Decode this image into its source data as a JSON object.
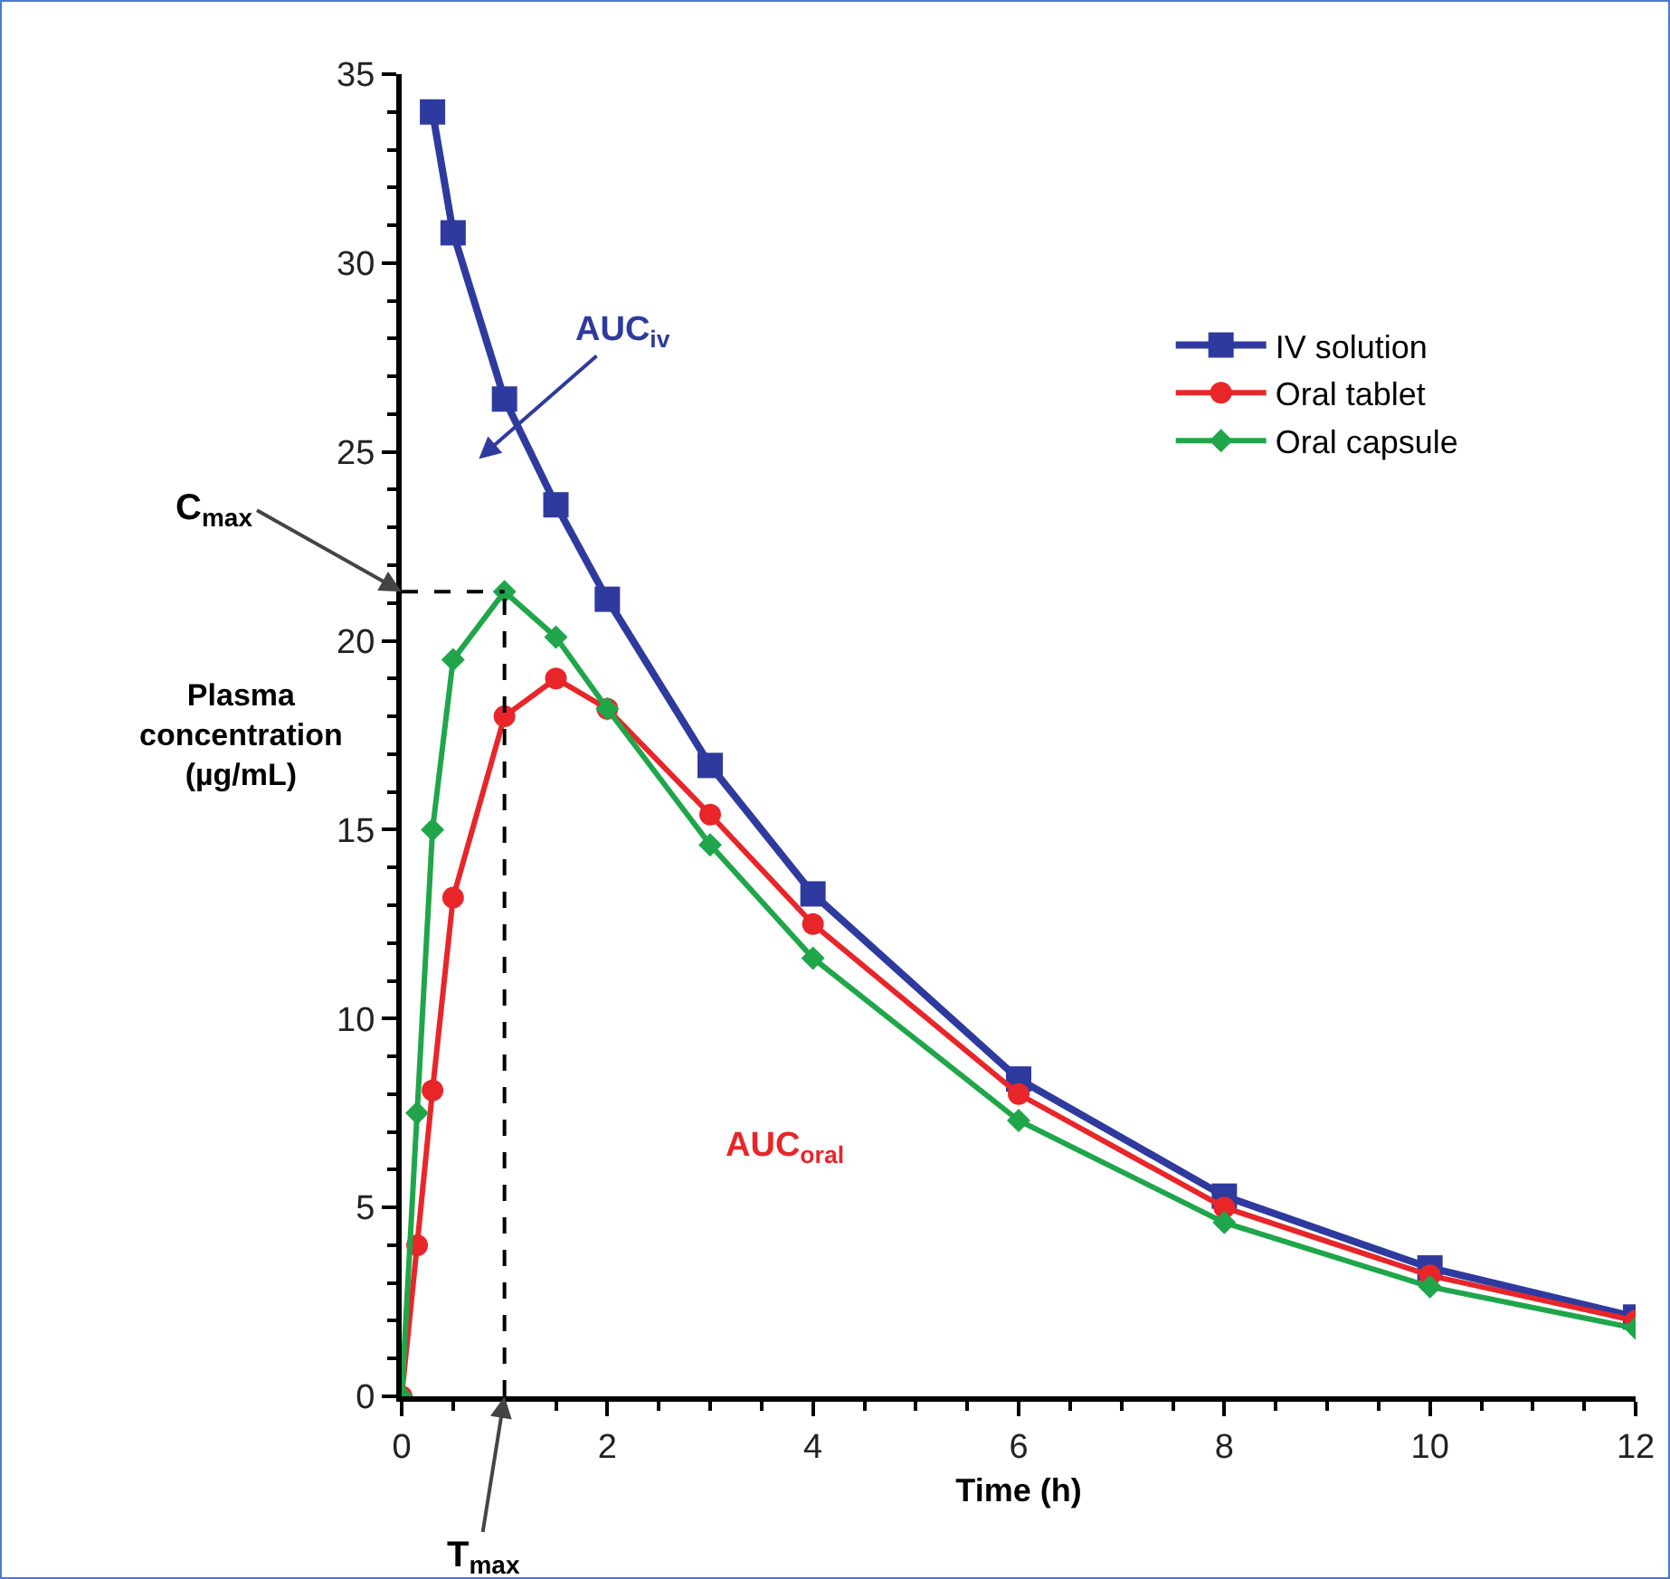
{
  "chart_data": {
    "type": "line",
    "xlabel": "Time (h)",
    "ylabel": "Plasma concentration (µg/mL)",
    "xlim": [
      0,
      12
    ],
    "xticks": [
      0,
      2,
      4,
      6,
      8,
      10,
      12
    ],
    "ylim": [
      0,
      35
    ],
    "yticks": [
      0,
      5,
      10,
      15,
      20,
      25,
      30,
      35
    ],
    "grid": false,
    "legend": "top right",
    "line_style": "solid",
    "series": [
      {
        "name": "IV solution",
        "color": "#2e3a9e",
        "marker": "square",
        "x": [
          0.3,
          0.5,
          1,
          1.5,
          2,
          3,
          4,
          6,
          8,
          10,
          12
        ],
        "values": [
          34,
          30.8,
          26.4,
          23.6,
          21.1,
          16.7,
          13.3,
          8.4,
          5.3,
          3.4,
          2.1
        ]
      },
      {
        "name": "Oral tablet",
        "color": "#e8262a",
        "marker": "circle",
        "x": [
          0,
          0.15,
          0.3,
          0.5,
          1,
          1.5,
          2,
          3,
          4,
          6,
          8,
          10,
          12
        ],
        "values": [
          0,
          4,
          8.1,
          13.2,
          18,
          19,
          18.2,
          15.4,
          12.5,
          8,
          5,
          3.2,
          2.0
        ]
      },
      {
        "name": "Oral capsule",
        "color": "#1fa64a",
        "marker": "diamond",
        "x": [
          0,
          0.15,
          0.3,
          0.5,
          1,
          1.5,
          2,
          3,
          4,
          6,
          8,
          10,
          12
        ],
        "values": [
          0,
          7.5,
          15,
          19.5,
          21.3,
          20.1,
          18.2,
          14.6,
          11.6,
          7.3,
          4.6,
          2.9,
          1.8
        ]
      }
    ],
    "ref_lines": [
      {
        "axis": "y",
        "value": 21.3,
        "label": "C$_{max}$",
        "line_style": "dashed",
        "color": "#000000"
      },
      {
        "axis": "x",
        "value": 1,
        "label": "T$_{max}$",
        "line_style": "dashed",
        "color": "#000000"
      }
    ],
    "annotations": [
      "AUC$_{iv}$",
      "AUC$_{oral}$"
    ]
  }
}
